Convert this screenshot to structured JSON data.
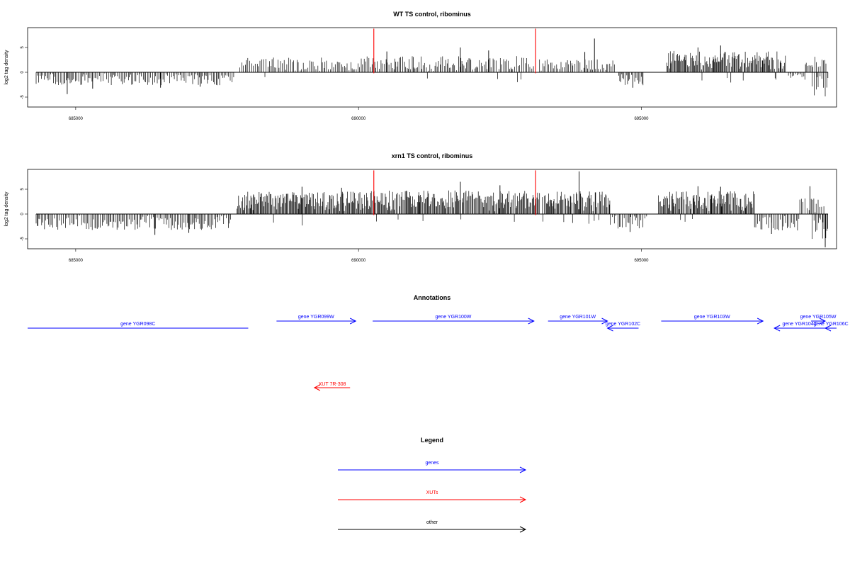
{
  "chart_data": [
    {
      "type": "bar",
      "title": "WT TS control, ribominus",
      "ylabel": "log2 tag density",
      "xlim": [
        684150,
        698450
      ],
      "ylim": [
        -7,
        9
      ],
      "xticks": [
        685000,
        690000,
        695000
      ],
      "xtick_labels": [
        "685000",
        "690000",
        "695000"
      ],
      "yticks": [
        -5,
        0,
        5
      ],
      "ytick_labels": [
        "-5",
        "0",
        "5"
      ],
      "baseline_range": [
        684300,
        698300
      ],
      "highlight_x": [
        690270,
        693130
      ],
      "highlight_color": "#ff0000",
      "segments": [
        {
          "x_start": 684300,
          "x_end": 687800,
          "kind": "neg",
          "low": 0.4,
          "high": 2.6,
          "peak": [
            [
              684850,
              4.4
            ],
            [
              685300,
              3.3
            ],
            [
              686500,
              3.1
            ],
            [
              687200,
              2.9
            ]
          ]
        },
        {
          "x_start": 687900,
          "x_end": 690150,
          "kind": "pos",
          "low": 0.6,
          "high": 3.0
        },
        {
          "x_start": 690150,
          "x_end": 693100,
          "kind": "pos",
          "low": 0.7,
          "high": 3.3,
          "peak": [
            [
              690500,
              4.2
            ],
            [
              691800,
              5.0
            ],
            [
              692300,
              4.4
            ]
          ]
        },
        {
          "x_start": 693200,
          "x_end": 694550,
          "kind": "pos",
          "low": 0.6,
          "high": 2.6,
          "peak": [
            [
              694170,
              6.8
            ],
            [
              694000,
              4.1
            ]
          ]
        },
        {
          "x_start": 694600,
          "x_end": 695050,
          "kind": "neg",
          "low": 0.5,
          "high": 2.8,
          "peak": [
            [
              694850,
              3.1
            ]
          ]
        },
        {
          "x_start": 695450,
          "x_end": 697550,
          "kind": "pos",
          "low": 1.5,
          "high": 4.3,
          "peak": [
            [
              696400,
              5.4
            ],
            [
              696000,
              5.0
            ]
          ]
        },
        {
          "x_start": 697600,
          "x_end": 697900,
          "kind": "neg",
          "low": 0.4,
          "high": 1.6
        },
        {
          "x_start": 697900,
          "x_end": 698280,
          "kind": "pos",
          "low": 1.0,
          "high": 3.2
        },
        {
          "x_start": 698020,
          "x_end": 698300,
          "kind": "neg",
          "low": 1.8,
          "high": 5.0
        }
      ]
    },
    {
      "type": "bar",
      "title": "xrn1 TS control, ribominus",
      "ylabel": "log2 tag density",
      "xlim": [
        684150,
        698450
      ],
      "ylim": [
        -7,
        9
      ],
      "xticks": [
        685000,
        690000,
        695000
      ],
      "xtick_labels": [
        "685000",
        "690000",
        "695000"
      ],
      "yticks": [
        -5,
        0,
        5
      ],
      "ytick_labels": [
        "-5",
        "0",
        "5"
      ],
      "baseline_range": [
        684300,
        698300
      ],
      "highlight_x": [
        690270,
        693130
      ],
      "highlight_color": "#ff0000",
      "segments": [
        {
          "x_start": 684300,
          "x_end": 687750,
          "kind": "neg",
          "low": 0.7,
          "high": 3.2,
          "peak": [
            [
              686400,
              4.2
            ],
            [
              687000,
              3.8
            ]
          ]
        },
        {
          "x_start": 687850,
          "x_end": 690150,
          "kind": "pos",
          "low": 1.5,
          "high": 4.5,
          "peak": [
            [
              689000,
              5.5
            ],
            [
              689700,
              5.3
            ]
          ]
        },
        {
          "x_start": 690150,
          "x_end": 693200,
          "kind": "pos",
          "low": 1.5,
          "high": 4.8,
          "peak": [
            [
              691800,
              6.5
            ],
            [
              692500,
              5.8
            ]
          ]
        },
        {
          "x_start": 693250,
          "x_end": 694450,
          "kind": "pos",
          "low": 1.5,
          "high": 4.6,
          "peak": [
            [
              693900,
              8.6
            ]
          ]
        },
        {
          "x_start": 694450,
          "x_end": 695100,
          "kind": "neg",
          "low": 0.5,
          "high": 3.0,
          "peak": [
            [
              694800,
              3.6
            ]
          ]
        },
        {
          "x_start": 695300,
          "x_end": 697000,
          "kind": "pos",
          "low": 1.5,
          "high": 4.7,
          "peak": [
            [
              696000,
              5.6
            ],
            [
              696400,
              5.5
            ]
          ]
        },
        {
          "x_start": 697000,
          "x_end": 697800,
          "kind": "neg",
          "low": 0.7,
          "high": 3.3,
          "peak": [
            [
              697300,
              4.0
            ]
          ]
        },
        {
          "x_start": 697800,
          "x_end": 698250,
          "kind": "pos",
          "low": 1.0,
          "high": 3.4,
          "peak": [
            [
              697980,
              5.6
            ]
          ]
        },
        {
          "x_start": 698020,
          "x_end": 698300,
          "kind": "neg",
          "low": 2.0,
          "high": 5.6,
          "peak": [
            [
              698250,
              6.7
            ]
          ]
        }
      ]
    }
  ],
  "annotations": {
    "title": "Annotations",
    "features": [
      {
        "label": "gene YGR098C",
        "type": "gene",
        "strand": "-",
        "start": 684150,
        "end": 688050,
        "row": 1,
        "arrow": false
      },
      {
        "label": "gene YGR099W",
        "type": "gene",
        "strand": "+",
        "start": 688550,
        "end": 689950,
        "row": 0,
        "arrow": true
      },
      {
        "label": "gene YGR100W",
        "type": "gene",
        "strand": "+",
        "start": 690250,
        "end": 693100,
        "row": 0,
        "arrow": true
      },
      {
        "label": "gene YGR101W",
        "type": "gene",
        "strand": "+",
        "start": 693350,
        "end": 694400,
        "row": 0,
        "arrow": true
      },
      {
        "label": "gene YGR102C",
        "type": "gene",
        "strand": "-",
        "start": 694400,
        "end": 694950,
        "row": 1,
        "arrow": true
      },
      {
        "label": "gene YGR103W",
        "type": "gene",
        "strand": "+",
        "start": 695350,
        "end": 697150,
        "row": 0,
        "arrow": true
      },
      {
        "label": "gene YGR104C",
        "type": "gene",
        "strand": "-",
        "start": 697350,
        "end": 698250,
        "row": 1,
        "arrow": true
      },
      {
        "label": "gene YGR105W",
        "type": "gene",
        "strand": "+",
        "start": 698000,
        "end": 698250,
        "row": 0,
        "arrow": true
      },
      {
        "label": "gene YGR106C",
        "type": "gene",
        "strand": "-",
        "start": 698250,
        "end": 698450,
        "row": 1,
        "arrow": true
      },
      {
        "label": "XUT 7R-308",
        "type": "xut",
        "strand": "-",
        "start": 689220,
        "end": 689850,
        "row": 2,
        "arrow": true
      }
    ]
  },
  "legend": {
    "title": "Legend",
    "items": [
      {
        "label": "genes",
        "color": "#0000ff"
      },
      {
        "label": "XUTs",
        "color": "#ff0000"
      },
      {
        "label": "other",
        "color": "#000000"
      }
    ]
  },
  "colors": {
    "gene": "#0000ff",
    "xut": "#ff0000",
    "other": "#000000",
    "bars": "#000000"
  }
}
